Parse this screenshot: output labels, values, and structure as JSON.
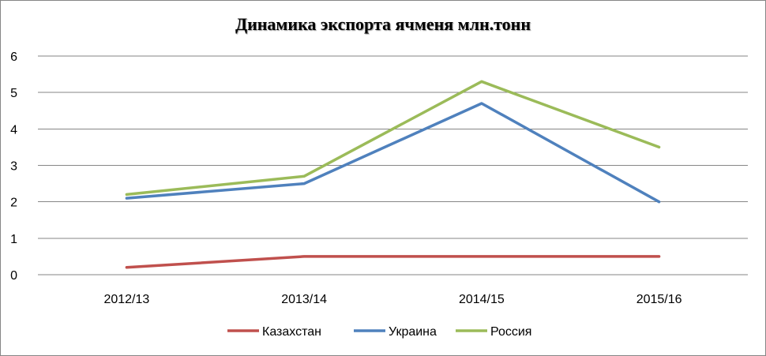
{
  "chart_data": {
    "type": "line",
    "title": "Динамика экспорта ячменя млн.тонн",
    "xlabel": "",
    "ylabel": "",
    "categories": [
      "2012/13",
      "2013/14",
      "2014/15",
      "2015/16"
    ],
    "y_ticks": [
      "0",
      "1",
      "2",
      "3",
      "4",
      "5",
      "6"
    ],
    "ylim": [
      0,
      6
    ],
    "grid": true,
    "legend_position": "bottom",
    "series": [
      {
        "name": "Казахстан",
        "color": "#C0504D",
        "values": [
          0.2,
          0.5,
          0.5,
          0.5
        ]
      },
      {
        "name": "Украина",
        "color": "#4F81BD",
        "values": [
          2.1,
          2.5,
          4.7,
          2.0
        ]
      },
      {
        "name": "Россия",
        "color": "#9BBB59",
        "values": [
          2.2,
          2.7,
          5.3,
          3.5
        ]
      }
    ]
  }
}
